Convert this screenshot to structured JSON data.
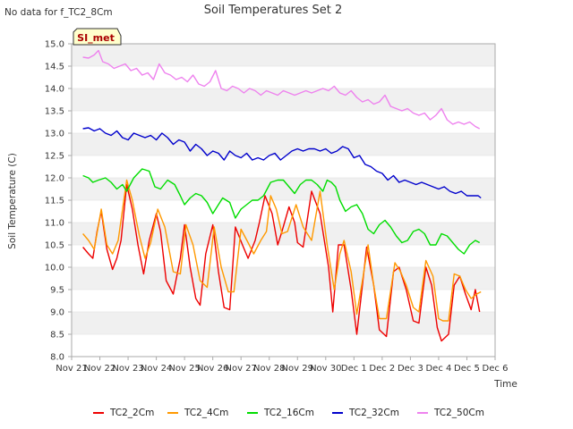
{
  "corner_note": "No data for f_TC2_8Cm",
  "badge": "SI_met",
  "chart_data": {
    "type": "line",
    "title": "Soil Temperatures Set 2",
    "xlabel": "Time",
    "ylabel": "Soil Temperature (C)",
    "xlim": [
      0,
      15
    ],
    "ylim": [
      8.0,
      15.0
    ],
    "grid": "horizontal bands",
    "legend_position": "bottom",
    "x_ticks": [
      "Nov 21",
      "Nov 22",
      "Nov 23",
      "Nov 24",
      "Nov 25",
      "Nov 26",
      "Nov 27",
      "Nov 28",
      "Nov 29",
      "Nov 30",
      "Dec 1",
      "Dec 2",
      "Dec 3",
      "Dec 4",
      "Dec 5",
      "Dec 6"
    ],
    "y_ticks": [
      "8.0",
      "8.5",
      "9.0",
      "9.5",
      "10.0",
      "10.5",
      "11.0",
      "11.5",
      "12.0",
      "12.5",
      "13.0",
      "13.5",
      "14.0",
      "14.5",
      "15.0"
    ],
    "x_unit": "days since Nov 21",
    "series": [
      {
        "name": "TC2_2Cm",
        "color": "#ee0000",
        "x": [
          0.4,
          0.6,
          0.75,
          0.9,
          1.05,
          1.25,
          1.45,
          1.6,
          1.75,
          1.95,
          2.15,
          2.35,
          2.55,
          2.75,
          3.0,
          3.15,
          3.35,
          3.6,
          3.85,
          4.0,
          4.2,
          4.4,
          4.55,
          4.75,
          5.0,
          5.2,
          5.4,
          5.6,
          5.8,
          6.05,
          6.25,
          6.5,
          6.65,
          6.85,
          7.1,
          7.3,
          7.45,
          7.7,
          7.9,
          8.0,
          8.2,
          8.5,
          8.8,
          9.1,
          9.25,
          9.45,
          9.65,
          9.9,
          10.1,
          10.3,
          10.45,
          10.7,
          10.9,
          11.15,
          11.4,
          11.6,
          11.85,
          12.1,
          12.3,
          12.55,
          12.75,
          12.95,
          13.1,
          13.35,
          13.55,
          13.75,
          13.95,
          14.15,
          14.3,
          14.45
        ],
        "y": [
          10.45,
          10.3,
          10.2,
          10.8,
          11.25,
          10.4,
          9.95,
          10.2,
          10.6,
          11.85,
          11.3,
          10.5,
          9.85,
          10.6,
          11.2,
          10.8,
          9.7,
          9.4,
          10.2,
          10.95,
          10.0,
          9.3,
          9.15,
          10.3,
          10.95,
          9.9,
          9.1,
          9.05,
          10.9,
          10.5,
          10.2,
          10.6,
          11.0,
          11.6,
          11.2,
          10.5,
          10.8,
          11.35,
          11.0,
          10.55,
          10.45,
          11.7,
          11.2,
          10.0,
          9.0,
          10.5,
          10.5,
          9.5,
          8.5,
          9.6,
          10.45,
          9.6,
          8.6,
          8.45,
          9.9,
          10.0,
          9.5,
          8.8,
          8.75,
          10.0,
          9.6,
          8.65,
          8.35,
          8.5,
          9.6,
          9.8,
          9.4,
          9.05,
          9.5,
          9.0
        ]
      },
      {
        "name": "TC2_4Cm",
        "color": "#ff9900",
        "x": [
          0.4,
          0.6,
          0.8,
          1.05,
          1.25,
          1.45,
          1.65,
          1.95,
          2.15,
          2.4,
          2.6,
          2.8,
          3.05,
          3.3,
          3.6,
          3.85,
          4.05,
          4.3,
          4.55,
          4.8,
          5.05,
          5.3,
          5.55,
          5.75,
          6.0,
          6.25,
          6.45,
          6.7,
          6.9,
          7.05,
          7.25,
          7.45,
          7.65,
          7.95,
          8.2,
          8.5,
          8.8,
          9.05,
          9.3,
          9.5,
          9.65,
          9.9,
          10.1,
          10.3,
          10.5,
          10.7,
          10.9,
          11.15,
          11.45,
          11.65,
          11.85,
          12.1,
          12.3,
          12.55,
          12.8,
          13.0,
          13.15,
          13.35,
          13.55,
          13.75,
          13.95,
          14.15,
          14.35,
          14.5
        ],
        "y": [
          10.75,
          10.6,
          10.4,
          11.3,
          10.5,
          10.3,
          10.6,
          11.95,
          11.5,
          10.7,
          10.2,
          10.55,
          11.3,
          10.9,
          9.9,
          9.85,
          10.95,
          10.5,
          9.7,
          9.55,
          10.9,
          10.0,
          9.45,
          9.45,
          10.85,
          10.55,
          10.3,
          10.6,
          10.8,
          11.6,
          11.3,
          10.75,
          10.8,
          11.4,
          10.9,
          10.6,
          11.7,
          10.5,
          9.5,
          10.3,
          10.6,
          9.9,
          8.95,
          9.7,
          10.5,
          9.6,
          8.85,
          8.85,
          10.1,
          9.9,
          9.6,
          9.1,
          9.0,
          10.15,
          9.8,
          8.85,
          8.8,
          8.8,
          9.85,
          9.8,
          9.5,
          9.3,
          9.4,
          9.45
        ]
      },
      {
        "name": "TC2_16Cm",
        "color": "#00dd00",
        "x": [
          0.4,
          0.6,
          0.75,
          0.95,
          1.2,
          1.4,
          1.6,
          1.8,
          1.95,
          2.2,
          2.5,
          2.75,
          2.95,
          3.15,
          3.4,
          3.65,
          3.85,
          4.0,
          4.2,
          4.4,
          4.6,
          4.8,
          5.0,
          5.15,
          5.35,
          5.6,
          5.8,
          6.0,
          6.2,
          6.4,
          6.6,
          6.8,
          7.05,
          7.3,
          7.5,
          7.7,
          7.9,
          8.1,
          8.3,
          8.5,
          8.7,
          8.9,
          9.05,
          9.2,
          9.35,
          9.5,
          9.7,
          9.9,
          10.1,
          10.3,
          10.5,
          10.7,
          10.9,
          11.1,
          11.3,
          11.5,
          11.7,
          11.9,
          12.1,
          12.3,
          12.5,
          12.7,
          12.9,
          13.1,
          13.3,
          13.5,
          13.7,
          13.9,
          14.1,
          14.3,
          14.45
        ],
        "y": [
          12.05,
          12.0,
          11.9,
          11.95,
          12.0,
          11.9,
          11.75,
          11.85,
          11.7,
          12.0,
          12.2,
          12.15,
          11.8,
          11.75,
          11.95,
          11.85,
          11.6,
          11.4,
          11.55,
          11.65,
          11.6,
          11.45,
          11.2,
          11.35,
          11.55,
          11.45,
          11.1,
          11.3,
          11.4,
          11.5,
          11.5,
          11.6,
          11.9,
          11.95,
          11.95,
          11.8,
          11.65,
          11.85,
          11.95,
          11.95,
          11.85,
          11.7,
          11.95,
          11.9,
          11.8,
          11.5,
          11.25,
          11.35,
          11.4,
          11.2,
          10.85,
          10.75,
          10.95,
          11.05,
          10.9,
          10.7,
          10.55,
          10.6,
          10.8,
          10.85,
          10.75,
          10.5,
          10.5,
          10.75,
          10.7,
          10.55,
          10.4,
          10.3,
          10.5,
          10.6,
          10.55
        ]
      },
      {
        "name": "TC2_32Cm",
        "color": "#0000cc",
        "x": [
          0.4,
          0.6,
          0.8,
          1.0,
          1.2,
          1.4,
          1.6,
          1.8,
          2.0,
          2.2,
          2.4,
          2.6,
          2.8,
          3.0,
          3.2,
          3.4,
          3.6,
          3.8,
          4.0,
          4.2,
          4.4,
          4.6,
          4.8,
          5.0,
          5.2,
          5.4,
          5.6,
          5.8,
          6.0,
          6.2,
          6.4,
          6.6,
          6.8,
          7.0,
          7.2,
          7.4,
          7.6,
          7.8,
          8.0,
          8.2,
          8.4,
          8.6,
          8.8,
          9.0,
          9.2,
          9.4,
          9.6,
          9.8,
          10.0,
          10.2,
          10.4,
          10.6,
          10.8,
          11.0,
          11.2,
          11.4,
          11.6,
          11.8,
          12.0,
          12.2,
          12.4,
          12.6,
          12.8,
          13.0,
          13.2,
          13.4,
          13.6,
          13.8,
          14.0,
          14.2,
          14.4,
          14.5
        ],
        "y": [
          13.1,
          13.12,
          13.05,
          13.1,
          13.0,
          12.95,
          13.05,
          12.9,
          12.85,
          13.0,
          12.95,
          12.9,
          12.95,
          12.85,
          13.0,
          12.9,
          12.75,
          12.85,
          12.8,
          12.6,
          12.75,
          12.65,
          12.5,
          12.6,
          12.55,
          12.4,
          12.6,
          12.5,
          12.45,
          12.55,
          12.4,
          12.45,
          12.4,
          12.5,
          12.55,
          12.4,
          12.5,
          12.6,
          12.65,
          12.6,
          12.65,
          12.65,
          12.6,
          12.65,
          12.55,
          12.6,
          12.7,
          12.65,
          12.45,
          12.5,
          12.3,
          12.25,
          12.15,
          12.1,
          11.95,
          12.05,
          11.9,
          11.95,
          11.9,
          11.85,
          11.9,
          11.85,
          11.8,
          11.75,
          11.8,
          11.7,
          11.65,
          11.7,
          11.6,
          11.6,
          11.6,
          11.55
        ]
      },
      {
        "name": "TC2_50Cm",
        "color": "#ee82ee",
        "x": [
          0.4,
          0.6,
          0.8,
          0.95,
          1.1,
          1.3,
          1.5,
          1.7,
          1.9,
          2.1,
          2.3,
          2.5,
          2.7,
          2.9,
          3.1,
          3.3,
          3.5,
          3.7,
          3.9,
          4.1,
          4.3,
          4.5,
          4.7,
          4.9,
          5.1,
          5.3,
          5.5,
          5.7,
          5.9,
          6.1,
          6.3,
          6.5,
          6.7,
          6.9,
          7.1,
          7.3,
          7.5,
          7.7,
          7.9,
          8.1,
          8.3,
          8.5,
          8.7,
          8.9,
          9.1,
          9.3,
          9.5,
          9.7,
          9.9,
          10.1,
          10.3,
          10.5,
          10.7,
          10.9,
          11.1,
          11.3,
          11.5,
          11.7,
          11.9,
          12.1,
          12.3,
          12.5,
          12.7,
          12.9,
          13.1,
          13.3,
          13.5,
          13.7,
          13.9,
          14.1,
          14.3,
          14.45
        ],
        "y": [
          14.7,
          14.68,
          14.75,
          14.85,
          14.6,
          14.55,
          14.45,
          14.5,
          14.55,
          14.4,
          14.45,
          14.3,
          14.35,
          14.2,
          14.55,
          14.35,
          14.3,
          14.2,
          14.25,
          14.15,
          14.3,
          14.1,
          14.05,
          14.15,
          14.4,
          14.0,
          13.95,
          14.05,
          14.0,
          13.9,
          14.0,
          13.95,
          13.85,
          13.95,
          13.9,
          13.85,
          13.95,
          13.9,
          13.85,
          13.9,
          13.95,
          13.9,
          13.95,
          14.0,
          13.95,
          14.05,
          13.9,
          13.85,
          13.95,
          13.8,
          13.7,
          13.75,
          13.65,
          13.7,
          13.85,
          13.6,
          13.55,
          13.5,
          13.55,
          13.45,
          13.4,
          13.45,
          13.3,
          13.4,
          13.55,
          13.3,
          13.2,
          13.25,
          13.2,
          13.25,
          13.15,
          13.1
        ]
      }
    ]
  }
}
